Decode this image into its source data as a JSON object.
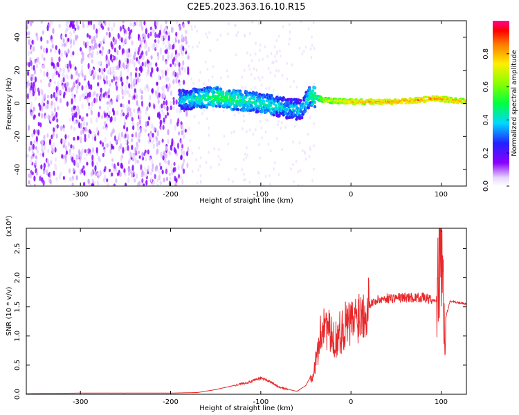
{
  "title": "C2E5.2023.363.16.10.R15",
  "colors": {
    "snr_line": "#e8282a",
    "signal_purple": "#7a10f0",
    "signal_blue": "#2a30ff",
    "signal_cyan": "#18e6e6",
    "signal_green": "#19e619",
    "signal_red": "#ff2020"
  },
  "chart_data": [
    {
      "type": "heatmap",
      "xlabel": "Height of straight line (km)",
      "ylabel": "Frequency (Hz)",
      "xlim": [
        -360,
        128
      ],
      "ylim": [
        -50,
        50
      ],
      "x_ticks": [
        -300,
        -200,
        -100,
        0,
        100
      ],
      "x_tick_labels": [
        "-300",
        "-200",
        "-100",
        "0",
        "100"
      ],
      "y_ticks": [
        -40,
        -20,
        0,
        20,
        40
      ],
      "y_tick_labels": [
        "-40",
        "-20",
        "0",
        "20",
        "40"
      ],
      "colorbar": {
        "label": "Normalized spectral amplitude",
        "range": [
          0,
          1
        ],
        "ticks": [
          0.0,
          0.2,
          0.4,
          0.6,
          0.8
        ],
        "tick_labels": [
          "0.0",
          "0.2",
          "0.4",
          "0.6",
          "0.8"
        ]
      },
      "ridge": [
        {
          "x": -190,
          "y": 2,
          "amp": 0.45
        },
        {
          "x": -170,
          "y": 3,
          "amp": 0.5
        },
        {
          "x": -150,
          "y": 4,
          "amp": 0.55
        },
        {
          "x": -130,
          "y": 2,
          "amp": 0.55
        },
        {
          "x": -110,
          "y": 1,
          "amp": 0.5
        },
        {
          "x": -90,
          "y": -1,
          "amp": 0.5
        },
        {
          "x": -70,
          "y": -3,
          "amp": 0.45
        },
        {
          "x": -55,
          "y": -4,
          "amp": 0.45
        },
        {
          "x": -45,
          "y": 5,
          "amp": 0.5
        },
        {
          "x": -30,
          "y": 2,
          "amp": 0.75
        },
        {
          "x": 0,
          "y": 1,
          "amp": 0.85
        },
        {
          "x": 50,
          "y": 1,
          "amp": 0.9
        },
        {
          "x": 95,
          "y": 3,
          "amp": 0.9
        },
        {
          "x": 128,
          "y": 1,
          "amp": 0.85
        }
      ]
    },
    {
      "type": "line",
      "xlabel": "Height of straight line (km)",
      "ylabel": "SNR (10 * v/v)",
      "y_scale_note": "(x10⁴)",
      "xlim": [
        -360,
        128
      ],
      "ylim": [
        0,
        2.85
      ],
      "x_ticks": [
        -300,
        -200,
        -100,
        0,
        100
      ],
      "x_tick_labels": [
        "-300",
        "-200",
        "-100",
        "0",
        "100"
      ],
      "y_ticks": [
        0.0,
        0.5,
        1.0,
        1.5,
        2.0,
        2.5
      ],
      "y_tick_labels": [
        "0.0",
        "0.5",
        "1.0",
        "1.5",
        "2.0",
        "2.5"
      ],
      "series": [
        {
          "x": [
            -360,
            -300,
            -250,
            -200,
            -170,
            -150,
            -130,
            -110,
            -100,
            -90,
            -80,
            -60,
            -50,
            -40,
            -35,
            -30,
            -25,
            -20,
            -15,
            -10,
            -5,
            0,
            10,
            20,
            30,
            40,
            60,
            80,
            95,
            100,
            103,
            110,
            128
          ],
          "y": [
            0.01,
            0.02,
            0.02,
            0.02,
            0.03,
            0.08,
            0.15,
            0.22,
            0.28,
            0.22,
            0.12,
            0.05,
            0.15,
            0.45,
            0.9,
            1.3,
            1.1,
            0.9,
            1.0,
            1.1,
            1.2,
            1.2,
            1.4,
            1.55,
            1.62,
            1.65,
            1.66,
            1.66,
            1.6,
            2.8,
            1.2,
            1.6,
            1.55
          ]
        }
      ]
    }
  ]
}
